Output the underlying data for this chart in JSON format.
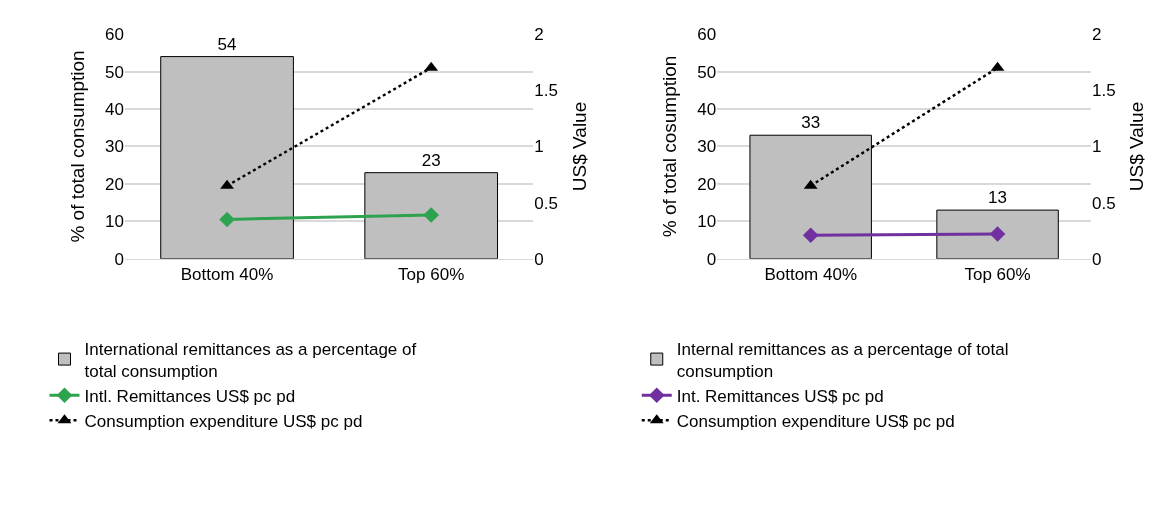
{
  "chart_data": [
    {
      "type": "bar",
      "categories": [
        "Bottom 40%",
        "Top 60%"
      ],
      "ylabel": "% of total consumption",
      "y2label": "US$ Value",
      "ylim": [
        0,
        60
      ],
      "yticks": [
        0,
        10,
        20,
        30,
        40,
        50,
        60
      ],
      "y2lim": [
        0,
        2
      ],
      "y2ticks": [
        0,
        0.5,
        1,
        1.5,
        2
      ],
      "grid": "y",
      "legend": "bottom",
      "series": [
        {
          "name": "International remittances as a percentage of total consumption",
          "color": "#bfbfbf",
          "values": [
            54,
            23
          ],
          "value_labels": [
            "54",
            "23"
          ]
        },
        {
          "type": "line",
          "axis": "y2",
          "name": "Intl. Remittances US$ pc pd",
          "color": "#2ea34f",
          "marker": "diamond",
          "line_style": "solid",
          "values": [
            0.35,
            0.39
          ]
        },
        {
          "type": "line",
          "axis": "y2",
          "name": "Consumption expenditure US$ pc pd",
          "color": "#000000",
          "marker": "triangle",
          "line_style": "dotted",
          "values": [
            0.65,
            1.7
          ]
        }
      ]
    },
    {
      "type": "bar",
      "categories": [
        "Bottom 40%",
        "Top 60%"
      ],
      "ylabel": "% of total cosumption",
      "y2label": "US$ Value",
      "ylim": [
        0,
        60
      ],
      "yticks": [
        0,
        10,
        20,
        30,
        40,
        50,
        60
      ],
      "y2lim": [
        0,
        2
      ],
      "y2ticks": [
        0,
        0.5,
        1,
        1.5,
        2
      ],
      "grid": "y",
      "legend": "bottom",
      "series": [
        {
          "name": "Internal remittances as a percentage of total consumption",
          "color": "#bfbfbf",
          "values": [
            33,
            13
          ],
          "value_labels": [
            "33",
            "13"
          ]
        },
        {
          "type": "line",
          "axis": "y2",
          "name": "Int. Remittances US$ pc pd",
          "color": "#7030a0",
          "marker": "diamond",
          "line_style": "solid",
          "values": [
            0.21,
            0.22
          ]
        },
        {
          "type": "line",
          "axis": "y2",
          "name": "Consumption expenditure US$ pc pd",
          "color": "#000000",
          "marker": "triangle",
          "line_style": "dotted",
          "values": [
            0.65,
            1.7
          ]
        }
      ]
    }
  ]
}
